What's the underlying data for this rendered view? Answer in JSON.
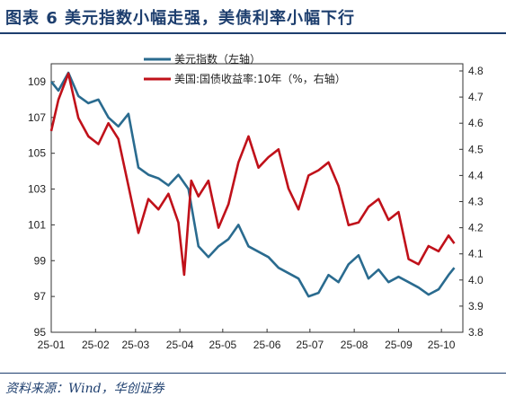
{
  "header": {
    "title": "图表 6   美元指数小幅走强，美债利率小幅下行"
  },
  "footer": {
    "source": "资料来源：Wind，华创证券"
  },
  "chart_data": {
    "type": "line",
    "x_ticks": [
      "25-01",
      "25-02",
      "25-03",
      "25-04",
      "25-05",
      "25-06",
      "25-07",
      "25-08",
      "25-09",
      "25-10"
    ],
    "y_left": {
      "ticks": [
        "109",
        "107",
        "105",
        "103",
        "101",
        "99",
        "97",
        "95"
      ],
      "ylim": [
        95,
        110
      ]
    },
    "y_right": {
      "ticks": [
        "4.8",
        "4.7",
        "4.6",
        "4.5",
        "4.4",
        "4.3",
        "4.2",
        "4.1",
        "4.0",
        "3.9",
        "3.8"
      ],
      "ylim": [
        3.8,
        4.8
      ]
    },
    "legend_position": "top-left",
    "series": [
      {
        "name": "美元指数（左轴）",
        "axis": "left",
        "color": "#2a6b8f",
        "x": [
          "2025-01-01",
          "2025-01-06",
          "2025-01-13",
          "2025-01-20",
          "2025-01-27",
          "2025-02-03",
          "2025-02-10",
          "2025-02-17",
          "2025-02-24",
          "2025-03-03",
          "2025-03-10",
          "2025-03-17",
          "2025-03-24",
          "2025-03-31",
          "2025-04-07",
          "2025-04-14",
          "2025-04-21",
          "2025-04-28",
          "2025-05-05",
          "2025-05-12",
          "2025-05-19",
          "2025-05-26",
          "2025-06-02",
          "2025-06-09",
          "2025-06-16",
          "2025-06-23",
          "2025-06-30",
          "2025-07-07",
          "2025-07-14",
          "2025-07-21",
          "2025-07-28",
          "2025-08-04",
          "2025-08-11",
          "2025-08-18",
          "2025-08-25",
          "2025-09-01",
          "2025-09-08",
          "2025-09-15",
          "2025-09-22",
          "2025-09-29",
          "2025-10-06",
          "2025-10-10"
        ],
        "values": [
          109.0,
          108.5,
          109.5,
          108.2,
          107.8,
          108.0,
          107.0,
          106.5,
          107.2,
          104.2,
          103.8,
          103.6,
          103.2,
          103.8,
          103.0,
          99.8,
          99.2,
          99.8,
          100.2,
          101.0,
          99.8,
          99.5,
          99.2,
          98.6,
          98.3,
          98.0,
          97.0,
          97.2,
          98.2,
          97.8,
          98.8,
          99.3,
          98.0,
          98.5,
          97.8,
          98.1,
          97.8,
          97.5,
          97.1,
          97.4,
          98.2,
          98.6
        ]
      },
      {
        "name": "美国:国债收益率:10年（%，右轴）",
        "axis": "right",
        "color": "#c0111a",
        "x": [
          "2025-01-01",
          "2025-01-06",
          "2025-01-13",
          "2025-01-20",
          "2025-01-27",
          "2025-02-03",
          "2025-02-10",
          "2025-02-17",
          "2025-02-24",
          "2025-03-03",
          "2025-03-10",
          "2025-03-17",
          "2025-03-24",
          "2025-03-31",
          "2025-04-04",
          "2025-04-09",
          "2025-04-14",
          "2025-04-21",
          "2025-04-28",
          "2025-05-05",
          "2025-05-12",
          "2025-05-19",
          "2025-05-26",
          "2025-06-02",
          "2025-06-09",
          "2025-06-16",
          "2025-06-23",
          "2025-06-30",
          "2025-07-07",
          "2025-07-14",
          "2025-07-21",
          "2025-07-28",
          "2025-08-04",
          "2025-08-11",
          "2025-08-18",
          "2025-08-25",
          "2025-09-01",
          "2025-09-08",
          "2025-09-15",
          "2025-09-22",
          "2025-09-29",
          "2025-10-06",
          "2025-10-10"
        ],
        "values": [
          4.57,
          4.69,
          4.79,
          4.62,
          4.55,
          4.52,
          4.6,
          4.54,
          4.36,
          4.18,
          4.31,
          4.27,
          4.33,
          4.22,
          4.02,
          4.38,
          4.32,
          4.38,
          4.2,
          4.29,
          4.45,
          4.55,
          4.43,
          4.47,
          4.5,
          4.35,
          4.27,
          4.4,
          4.42,
          4.45,
          4.36,
          4.21,
          4.22,
          4.28,
          4.31,
          4.23,
          4.26,
          4.08,
          4.06,
          4.13,
          4.11,
          4.17,
          4.14
        ]
      }
    ]
  }
}
